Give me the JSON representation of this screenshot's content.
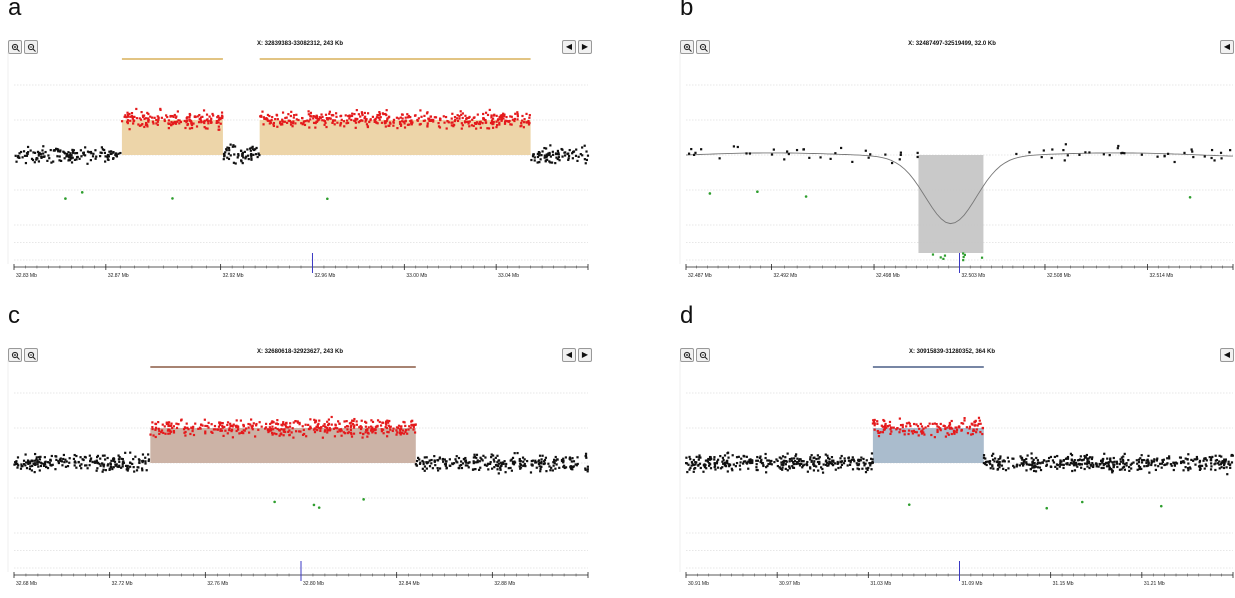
{
  "panels": [
    {
      "letter": "a",
      "region": "X: 32839383-33082312, 243 Kb"
    },
    {
      "letter": "b",
      "region": "X: 32487497-32519499, 32.0 Kb"
    },
    {
      "letter": "c",
      "region": "X: 32680618-32923627, 243 Kb"
    },
    {
      "letter": "d",
      "region": "X: 30915839-31280352, 364 Kb"
    }
  ],
  "colors": {
    "gain_fill_a": "#ecd3a4",
    "gain_fill_c": "#c9afa1",
    "gain_fill_d": "#a5b8ca",
    "loss_fill_b": "#c6c6c6",
    "dot_normal": "#111111",
    "dot_gain": "#e41a1c",
    "dot_loss": "#2e9e2e",
    "cursor": "#3b39c4"
  },
  "chart_data": [
    {
      "type": "scatter",
      "panel": "a",
      "x_range_mb": [
        32.83,
        33.08
      ],
      "tick_labels": [
        "32.83 Mb",
        "32.87 Mb",
        "32.92 Mb",
        "32.96 Mb",
        "33.00 Mb",
        "33.04 Mb",
        "33.08"
      ],
      "tick_values": [
        32.83,
        32.87,
        32.92,
        32.96,
        33.0,
        33.04,
        33.08
      ],
      "y_range_log2": [
        -3,
        3
      ],
      "segments": [
        {
          "start": 32.877,
          "end": 32.921,
          "log2": 1
        },
        {
          "start": 32.937,
          "end": 33.055,
          "log2": 1
        }
      ],
      "cursor_mb": 32.96
    },
    {
      "type": "scatter",
      "panel": "b",
      "x_range_mb": [
        32.487,
        32.519
      ],
      "tick_labels": [
        "32.487 Mb",
        "32.492 Mb",
        "32.498 Mb",
        "32.503 Mb",
        "32.508 Mb",
        "32.514 Mb",
        "32."
      ],
      "tick_values": [
        32.487,
        32.492,
        32.498,
        32.503,
        32.508,
        32.514,
        32.519
      ],
      "y_range_log2": [
        -3,
        3
      ],
      "segments": [
        {
          "start": 32.5006,
          "end": 32.5044,
          "log2": -2.8
        }
      ],
      "cursor_mb": 32.503
    },
    {
      "type": "scatter",
      "panel": "c",
      "x_range_mb": [
        32.68,
        32.92
      ],
      "tick_labels": [
        "32.68 Mb",
        "32.72 Mb",
        "32.76 Mb",
        "32.80 Mb",
        "32.84 Mb",
        "32.88 Mb",
        "32.92"
      ],
      "tick_values": [
        32.68,
        32.72,
        32.76,
        32.8,
        32.84,
        32.88,
        32.92
      ],
      "y_range_log2": [
        -3,
        3
      ],
      "segments": [
        {
          "start": 32.737,
          "end": 32.848,
          "log2": 1
        }
      ],
      "cursor_mb": 32.8
    },
    {
      "type": "scatter",
      "panel": "d",
      "x_range_mb": [
        30.91,
        31.27
      ],
      "tick_labels": [
        "30.91 Mb",
        "30.97 Mb",
        "31.03 Mb",
        "31.09 Mb",
        "31.15 Mb",
        "31.21 Mb",
        "3"
      ],
      "tick_values": [
        30.91,
        30.97,
        31.03,
        31.09,
        31.15,
        31.21,
        31.27
      ],
      "y_range_log2": [
        -3,
        3
      ],
      "segments": [
        {
          "start": 31.033,
          "end": 31.106,
          "log2": 1
        }
      ],
      "cursor_mb": 31.09
    }
  ]
}
